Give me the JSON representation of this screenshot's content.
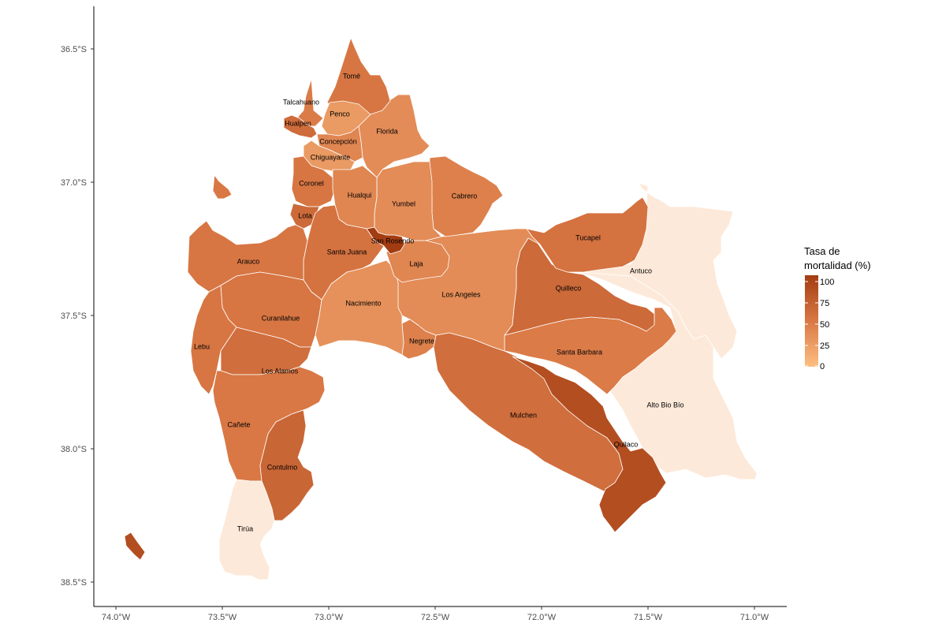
{
  "map": {
    "y_axis": {
      "ticks": [
        "36.5°S",
        "37.0°S",
        "37.5°S",
        "38.0°S",
        "38.5°S"
      ]
    },
    "x_axis": {
      "ticks": [
        "74.0°W",
        "73.5°W",
        "73.0°W",
        "72.5°W",
        "72.0°W",
        "71.5°W",
        "71.0°W"
      ]
    },
    "legend": {
      "title_line1": "Tasa de",
      "title_line2": "mortalidad (%)",
      "ticks": [
        "100",
        "75",
        "50",
        "25",
        "0"
      ],
      "range": [
        0,
        100
      ],
      "color_low": "#fdbf83",
      "color_high": "#a33c12"
    },
    "regions": [
      {
        "name": "Tomé",
        "rate": 52
      },
      {
        "name": "Talcahuano",
        "rate": 48
      },
      {
        "name": "Penco",
        "rate": 30
      },
      {
        "name": "Hualpen",
        "rate": 60
      },
      {
        "name": "Florida",
        "rate": 38
      },
      {
        "name": "Concepción",
        "rate": 42
      },
      {
        "name": "Chiguayante",
        "rate": 30
      },
      {
        "name": "Coronel",
        "rate": 52
      },
      {
        "name": "Hualqui",
        "rate": 42
      },
      {
        "name": "Yumbel",
        "rate": 38
      },
      {
        "name": "Cabrero",
        "rate": 45
      },
      {
        "name": "Lota",
        "rate": 62
      },
      {
        "name": "San Rosendo",
        "rate": 100
      },
      {
        "name": "Santa Juana",
        "rate": 55
      },
      {
        "name": "Tucapel",
        "rate": 55
      },
      {
        "name": "Arauco",
        "rate": 52
      },
      {
        "name": "Laja",
        "rate": 42
      },
      {
        "name": "Antuco",
        "rate": 0
      },
      {
        "name": "Los Angeles",
        "rate": 38
      },
      {
        "name": "Nacimiento",
        "rate": 35
      },
      {
        "name": "Quilleco",
        "rate": 62
      },
      {
        "name": "Curanilahue",
        "rate": 52
      },
      {
        "name": "Lebu",
        "rate": 52
      },
      {
        "name": "Negrete",
        "rate": 45
      },
      {
        "name": "Santa Barbara",
        "rate": 48
      },
      {
        "name": "Los Alamos",
        "rate": 58
      },
      {
        "name": "Alto Bio Bío",
        "rate": 0
      },
      {
        "name": "Mulchen",
        "rate": 62
      },
      {
        "name": "Cañete",
        "rate": 50
      },
      {
        "name": "Quilaco",
        "rate": 85
      },
      {
        "name": "Contulmo",
        "rate": 65
      },
      {
        "name": "Tirúa",
        "rate": 0
      },
      {
        "name": "Santa María island",
        "rate": 50
      },
      {
        "name": "Mocha island",
        "rate": 50
      }
    ]
  }
}
